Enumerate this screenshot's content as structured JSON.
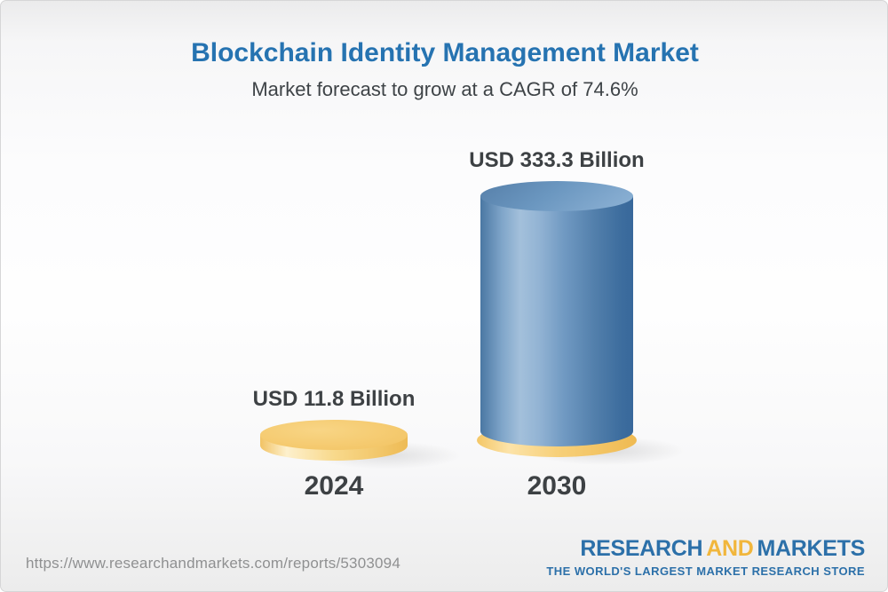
{
  "page": {
    "title": "Blockchain Identity Management Market",
    "subtitle": "Market forecast to grow at a CAGR of 74.6%"
  },
  "chart_data": {
    "type": "bar",
    "title": "Blockchain Identity Management Market",
    "subtitle": "Market forecast to grow at a CAGR of 74.6%",
    "cagr_percent": 74.6,
    "unit": "USD Billion",
    "categories": [
      "2024",
      "2030"
    ],
    "values": [
      11.8,
      333.3
    ],
    "value_labels": [
      "USD 11.8 Billion",
      "USD 333.3 Billion"
    ],
    "bar_styles": [
      {
        "category": "2024",
        "shape": "flat-disc",
        "color": "#F5CA6F"
      },
      {
        "category": "2030",
        "shape": "tall-cylinder",
        "color": "#6B97C0",
        "base_color": "#F5CA6F"
      }
    ],
    "ylim": [
      0,
      333.3
    ],
    "legend": "none",
    "grid": "off"
  },
  "footer": {
    "source_url": "https://www.researchandmarkets.com/reports/5303094",
    "logo": {
      "word1": "RESEARCH",
      "word2": "AND",
      "word3": "MARKETS",
      "tagline": "THE WORLD'S LARGEST MARKET RESEARCH STORE"
    }
  },
  "colors": {
    "title_blue": "#2673B1",
    "text_dark": "#3D4144",
    "url_gray": "#8F9091",
    "logo_blue": "#2C70A9",
    "logo_gold": "#F1B63C",
    "bar_yellow": "#F5CA6F",
    "bar_blue": "#4A77A3"
  }
}
